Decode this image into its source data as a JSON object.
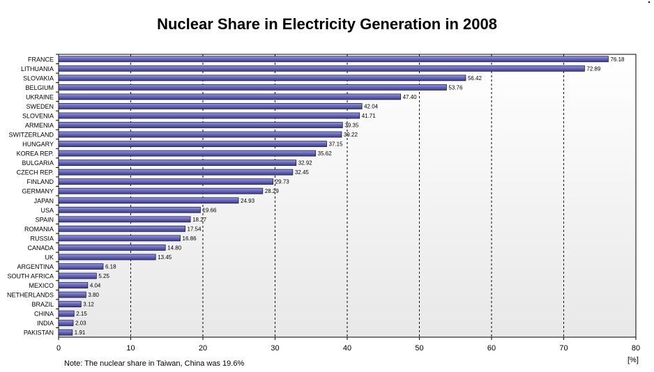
{
  "chart_data": {
    "type": "bar",
    "orientation": "horizontal",
    "title": "Nuclear Share in Electricity Generation in 2008",
    "xlabel": "[%]",
    "ylabel": "",
    "xlim": [
      0,
      80
    ],
    "xticks": [
      0,
      10,
      20,
      30,
      40,
      50,
      60,
      70,
      80
    ],
    "grid": true,
    "note": "Note: The nuclear share in Taiwan, China was 19.6%",
    "categories": [
      "FRANCE",
      "LITHUANIA",
      "SLOVAKIA",
      "BELGIUM",
      "UKRAINE",
      "SWEDEN",
      "SLOVENIA",
      "ARMENIA",
      "SWITZERLAND",
      "HUNGARY",
      "KOREA REP.",
      "BULGARIA",
      "CZECH REP.",
      "FINLAND",
      "GERMANY",
      "JAPAN",
      "USA",
      "SPAIN",
      "ROMANIA",
      "RUSSIA",
      "CANADA",
      "UK",
      "ARGENTINA",
      "SOUTH AFRICA",
      "MEXICO",
      "NETHERLANDS",
      "BRAZIL",
      "CHINA",
      "INDIA",
      "PAKISTAN"
    ],
    "values": [
      76.18,
      72.89,
      56.42,
      53.76,
      47.4,
      42.04,
      41.71,
      39.35,
      39.22,
      37.15,
      35.62,
      32.92,
      32.45,
      29.73,
      28.29,
      24.93,
      19.66,
      18.27,
      17.54,
      16.86,
      14.8,
      13.45,
      6.18,
      5.25,
      4.04,
      3.8,
      3.12,
      2.15,
      2.03,
      1.91
    ],
    "value_labels": [
      "76.18",
      "72.89",
      "56.42",
      "53.76",
      "47.40",
      "42.04",
      "41.71",
      "39.35",
      "39.22",
      "37.15",
      "35.62",
      "32.92",
      "32.45",
      "29.73",
      "28.29",
      "24.93",
      "19.66",
      "18.27",
      "17.54",
      "16.86",
      "14.80",
      "13.45",
      "6.18",
      "5.25",
      "4.04",
      "3.80",
      "3.12",
      "2.15",
      "2.03",
      "1.91"
    ],
    "bar_color": "#6a6ab8",
    "bar_edge_color": "#1a1a50",
    "background_gradient": [
      "#ffffff",
      "#e8e8e8"
    ]
  }
}
